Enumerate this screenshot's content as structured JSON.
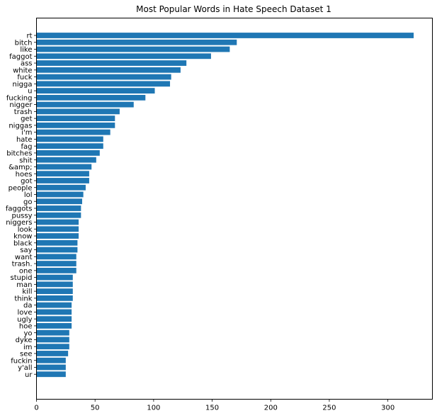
{
  "chart_data": {
    "type": "bar",
    "orientation": "horizontal",
    "title": "Most Popular Words in Hate Speech Dataset 1",
    "xlabel": "",
    "ylabel": "",
    "xlim": [
      0,
      338
    ],
    "xticks": [
      0,
      50,
      100,
      150,
      200,
      250,
      300
    ],
    "grid": false,
    "bar_color": "#1f77b4",
    "categories": [
      "rt",
      "bitch",
      "like",
      "faggot",
      "ass",
      "white",
      "fuck",
      "nigga",
      "u",
      "fucking",
      "nigger",
      "trash",
      "get",
      "niggas",
      "i'm",
      "hate",
      "fag",
      "bitches",
      "shit",
      "&amp;",
      "hoes",
      "got",
      "people",
      "lol",
      "go",
      "faggots",
      "pussy",
      "niggers",
      "look",
      "know",
      "black",
      "say",
      "want",
      "trash.",
      "one",
      "stupid",
      "man",
      "kill",
      "think",
      "da",
      "love",
      "ugly",
      "hoe",
      "yo",
      "dyke",
      "im",
      "see",
      "fuckin",
      "y'all",
      "ur"
    ],
    "values": [
      322,
      171,
      165,
      149,
      128,
      123,
      115,
      114,
      101,
      93,
      83,
      71,
      67,
      67,
      63,
      57,
      57,
      54,
      51,
      47,
      45,
      45,
      42,
      40,
      39,
      38,
      38,
      36,
      36,
      36,
      35,
      35,
      34,
      34,
      34,
      31,
      31,
      31,
      31,
      30,
      30,
      30,
      30,
      28,
      28,
      28,
      27,
      25,
      25,
      25
    ]
  }
}
